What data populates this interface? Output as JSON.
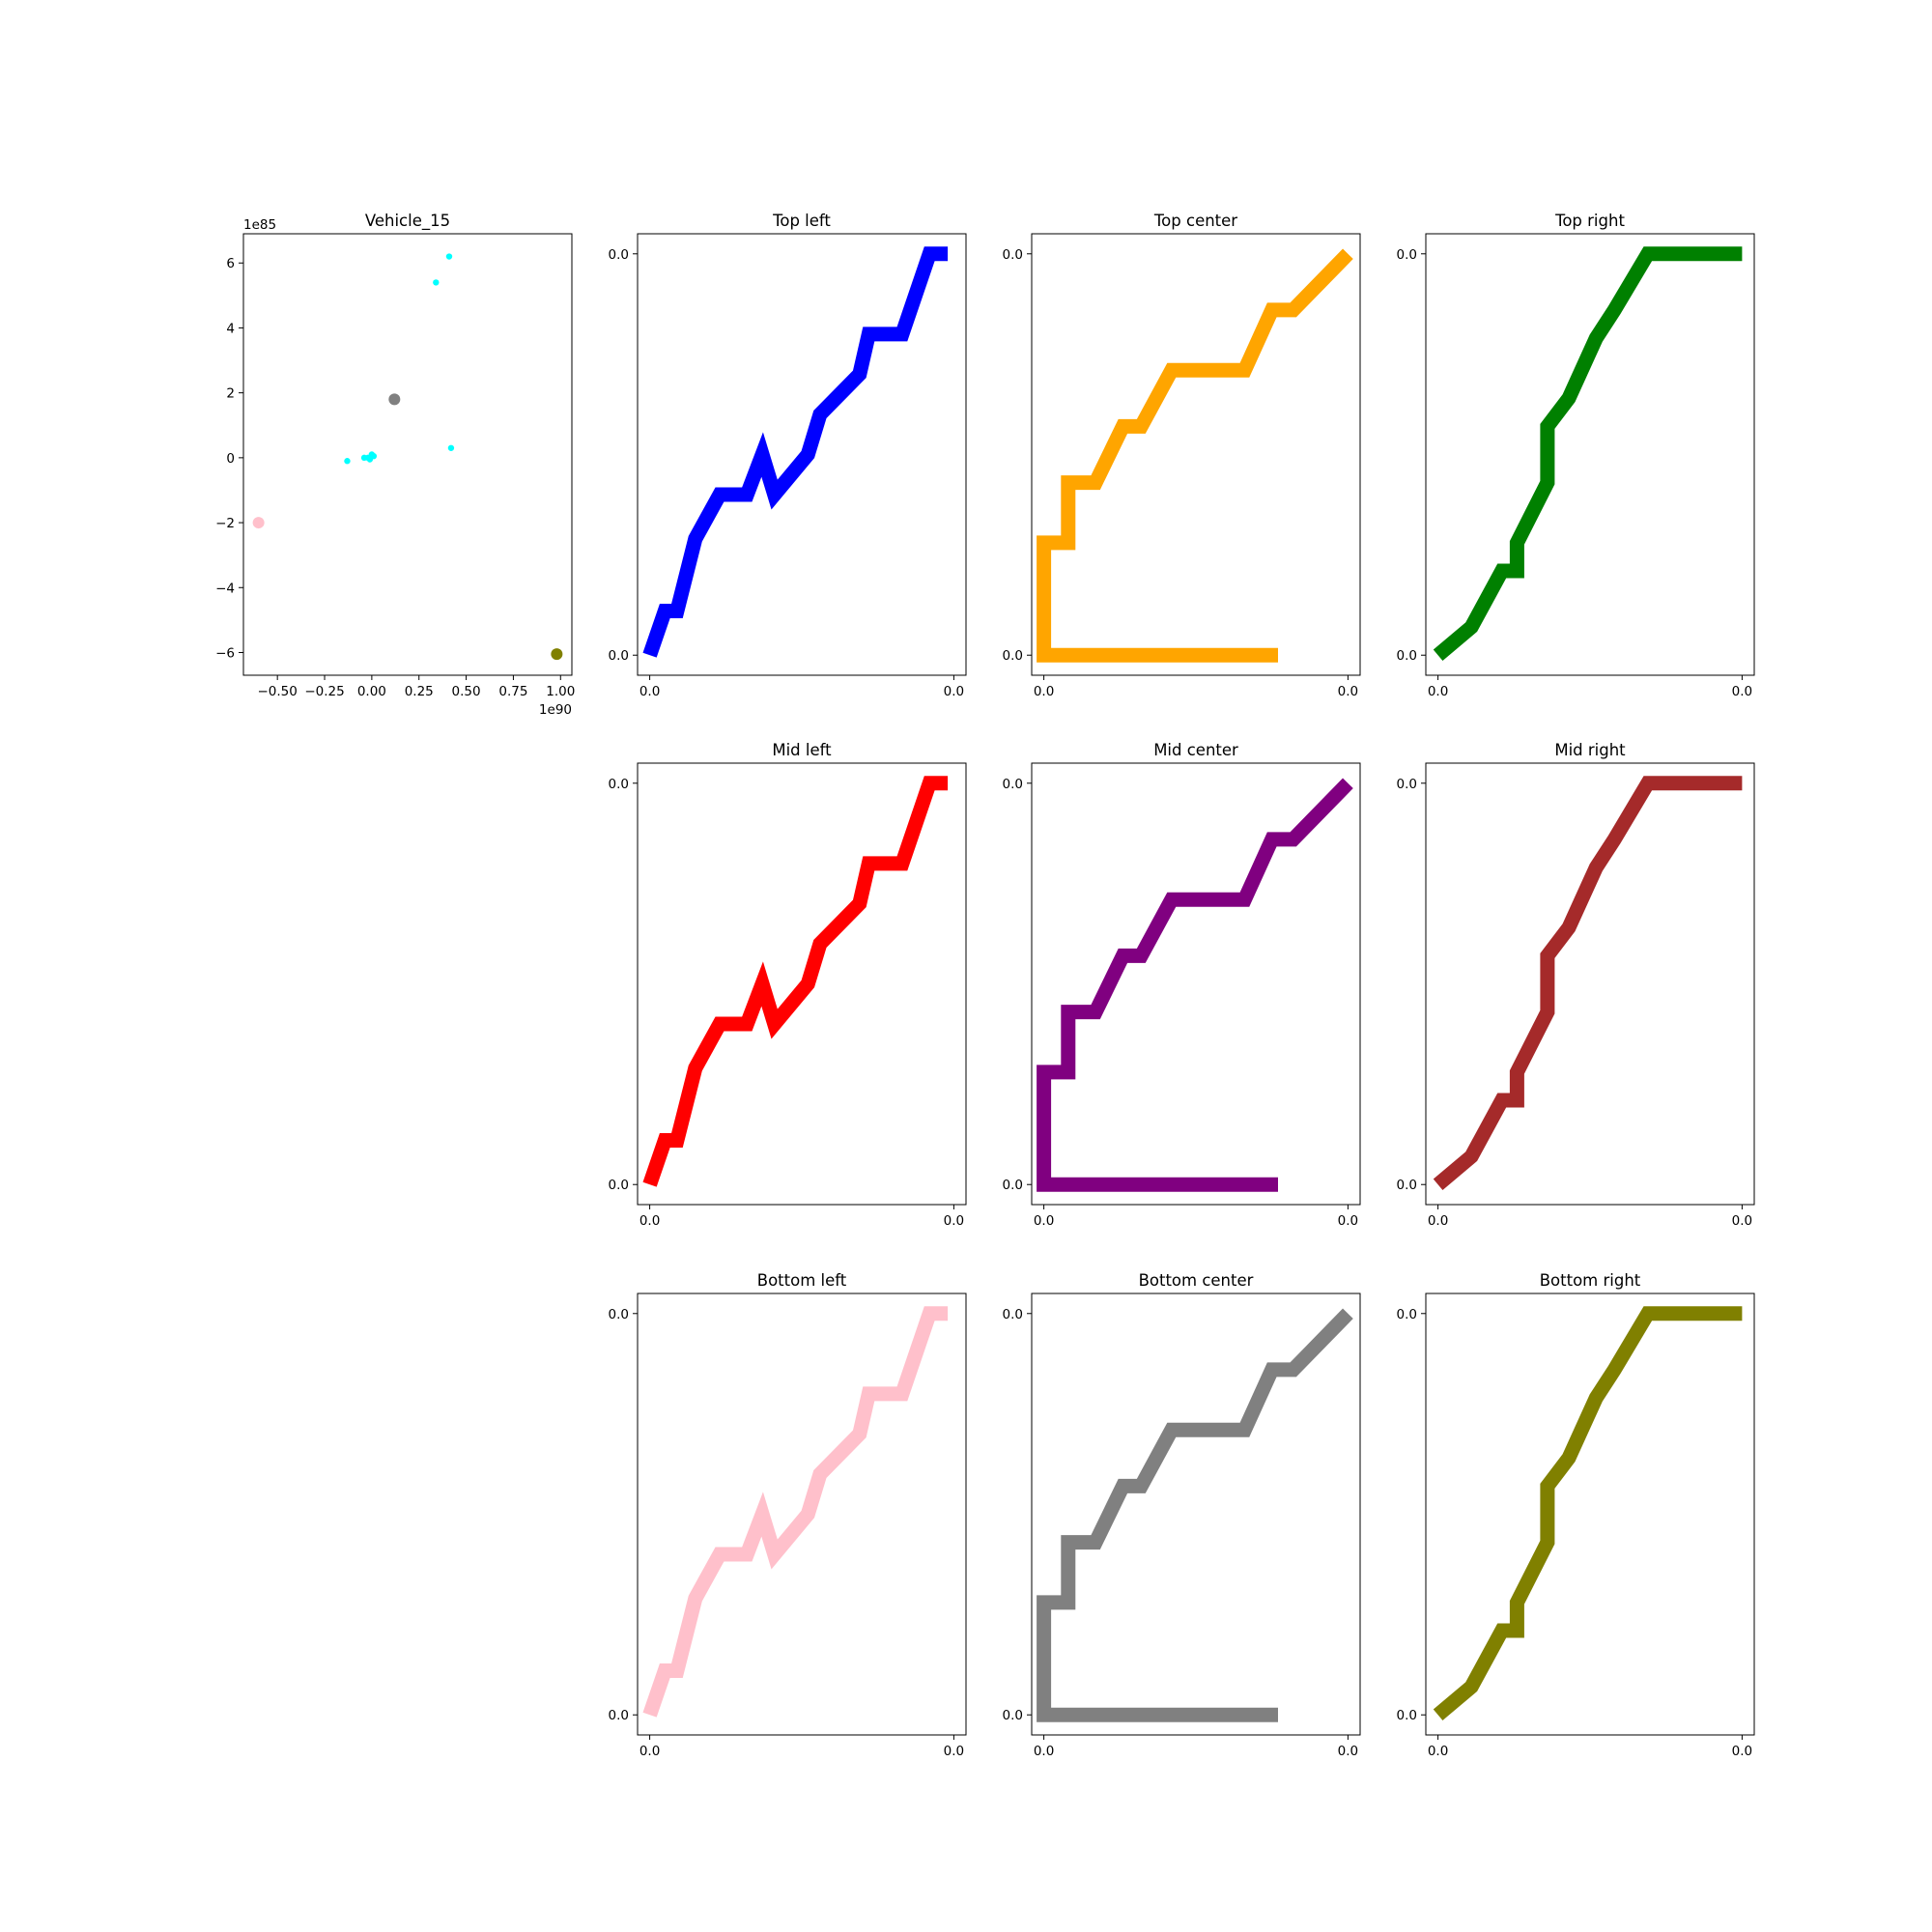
{
  "figure": {
    "background": "#ffffff"
  },
  "chart_data": [
    {
      "type": "scatter",
      "title": "Vehicle_15",
      "x_offset_text": "1e90",
      "y_offset_text": "1e85",
      "xlim": [
        -0.68,
        1.06
      ],
      "ylim": [
        -6.7,
        6.9
      ],
      "x_ticks": [
        -0.5,
        -0.25,
        0.0,
        0.25,
        0.5,
        0.75,
        1.0
      ],
      "x_tick_labels": [
        "−0.50",
        "−0.25",
        "0.00",
        "0.25",
        "0.50",
        "0.75",
        "1.00"
      ],
      "y_ticks": [
        -6,
        -4,
        -2,
        0,
        2,
        4,
        6
      ],
      "y_tick_labels": [
        "−6",
        "−4",
        "−2",
        "0",
        "2",
        "4",
        "6"
      ],
      "series": [
        {
          "color": "#00ffff",
          "marker_size": "small",
          "x": [
            0.41,
            0.34,
            0.42,
            -0.13,
            -0.04,
            -0.01,
            0.0,
            0.01,
            -0.02
          ],
          "y": [
            6.2,
            5.4,
            0.3,
            -0.1,
            0.0,
            -0.05,
            0.1,
            0.05,
            0.0
          ]
        },
        {
          "color": "#808080",
          "marker_size": "large",
          "x": [
            0.12
          ],
          "y": [
            1.8
          ]
        },
        {
          "color": "#ffc0cb",
          "marker_size": "large",
          "x": [
            -0.6
          ],
          "y": [
            -2.0
          ]
        },
        {
          "color": "#808000",
          "marker_size": "large",
          "x": [
            0.98
          ],
          "y": [
            -6.05
          ]
        }
      ]
    },
    {
      "type": "line",
      "title": "Top left",
      "color": "#0000ff",
      "x_tick_labels": [
        "0.0",
        "0.0"
      ],
      "y_tick_labels": [
        "0.0",
        "0.0"
      ],
      "xlim": [
        -0.04,
        1.04
      ],
      "ylim": [
        -0.05,
        1.05
      ],
      "x": [
        0.0,
        0.05,
        0.09,
        0.15,
        0.23,
        0.32,
        0.37,
        0.41,
        0.52,
        0.56,
        0.69,
        0.72,
        0.83,
        0.92,
        0.98
      ],
      "y": [
        0.0,
        0.11,
        0.11,
        0.29,
        0.4,
        0.4,
        0.5,
        0.4,
        0.5,
        0.6,
        0.7,
        0.8,
        0.8,
        1.0,
        1.0
      ]
    },
    {
      "type": "line",
      "title": "Top center",
      "color": "#ffa500",
      "x_tick_labels": [
        "0.0",
        "0.0"
      ],
      "y_tick_labels": [
        "0.0",
        "0.0"
      ],
      "xlim": [
        -0.04,
        1.04
      ],
      "ylim": [
        -0.05,
        1.05
      ],
      "x": [
        0.77,
        0.0,
        0.0,
        0.08,
        0.08,
        0.17,
        0.26,
        0.32,
        0.42,
        0.66,
        0.75,
        0.82,
        1.0
      ],
      "y": [
        0.0,
        0.0,
        0.28,
        0.28,
        0.43,
        0.43,
        0.57,
        0.57,
        0.71,
        0.71,
        0.86,
        0.86,
        1.0
      ]
    },
    {
      "type": "line",
      "title": "Top right",
      "color": "#008000",
      "x_tick_labels": [
        "0.0",
        "0.0"
      ],
      "y_tick_labels": [
        "0.0",
        "0.0"
      ],
      "xlim": [
        -0.04,
        1.04
      ],
      "ylim": [
        -0.05,
        1.05
      ],
      "x": [
        0.0,
        0.11,
        0.21,
        0.26,
        0.26,
        0.36,
        0.36,
        0.43,
        0.52,
        0.58,
        0.69,
        1.0
      ],
      "y": [
        0.0,
        0.07,
        0.21,
        0.21,
        0.28,
        0.43,
        0.57,
        0.64,
        0.79,
        0.86,
        1.0,
        1.0
      ]
    },
    {
      "type": "line",
      "title": "Mid left",
      "color": "#ff0000",
      "x_tick_labels": [
        "0.0",
        "0.0"
      ],
      "y_tick_labels": [
        "0.0",
        "0.0"
      ],
      "xlim": [
        -0.04,
        1.04
      ],
      "ylim": [
        -0.05,
        1.05
      ],
      "x": [
        0.0,
        0.05,
        0.09,
        0.15,
        0.23,
        0.32,
        0.37,
        0.41,
        0.52,
        0.56,
        0.69,
        0.72,
        0.83,
        0.92,
        0.98
      ],
      "y": [
        0.0,
        0.11,
        0.11,
        0.29,
        0.4,
        0.4,
        0.5,
        0.4,
        0.5,
        0.6,
        0.7,
        0.8,
        0.8,
        1.0,
        1.0
      ]
    },
    {
      "type": "line",
      "title": "Mid center",
      "color": "#800080",
      "x_tick_labels": [
        "0.0",
        "0.0"
      ],
      "y_tick_labels": [
        "0.0",
        "0.0"
      ],
      "xlim": [
        -0.04,
        1.04
      ],
      "ylim": [
        -0.05,
        1.05
      ],
      "x": [
        0.77,
        0.0,
        0.0,
        0.08,
        0.08,
        0.17,
        0.26,
        0.32,
        0.42,
        0.66,
        0.75,
        0.82,
        1.0
      ],
      "y": [
        0.0,
        0.0,
        0.28,
        0.28,
        0.43,
        0.43,
        0.57,
        0.57,
        0.71,
        0.71,
        0.86,
        0.86,
        1.0
      ]
    },
    {
      "type": "line",
      "title": "Mid right",
      "color": "#a52a2a",
      "x_tick_labels": [
        "0.0",
        "0.0"
      ],
      "y_tick_labels": [
        "0.0",
        "0.0"
      ],
      "xlim": [
        -0.04,
        1.04
      ],
      "ylim": [
        -0.05,
        1.05
      ],
      "x": [
        0.0,
        0.11,
        0.21,
        0.26,
        0.26,
        0.36,
        0.36,
        0.43,
        0.52,
        0.58,
        0.69,
        1.0
      ],
      "y": [
        0.0,
        0.07,
        0.21,
        0.21,
        0.28,
        0.43,
        0.57,
        0.64,
        0.79,
        0.86,
        1.0,
        1.0
      ]
    },
    {
      "type": "line",
      "title": "Bottom left",
      "color": "#ffc0cb",
      "x_tick_labels": [
        "0.0",
        "0.0"
      ],
      "y_tick_labels": [
        "0.0",
        "0.0"
      ],
      "xlim": [
        -0.04,
        1.04
      ],
      "ylim": [
        -0.05,
        1.05
      ],
      "x": [
        0.0,
        0.05,
        0.09,
        0.15,
        0.23,
        0.32,
        0.37,
        0.41,
        0.52,
        0.56,
        0.69,
        0.72,
        0.83,
        0.92,
        0.98
      ],
      "y": [
        0.0,
        0.11,
        0.11,
        0.29,
        0.4,
        0.4,
        0.5,
        0.4,
        0.5,
        0.6,
        0.7,
        0.8,
        0.8,
        1.0,
        1.0
      ]
    },
    {
      "type": "line",
      "title": "Bottom center",
      "color": "#808080",
      "x_tick_labels": [
        "0.0",
        "0.0"
      ],
      "y_tick_labels": [
        "0.0",
        "0.0"
      ],
      "xlim": [
        -0.04,
        1.04
      ],
      "ylim": [
        -0.05,
        1.05
      ],
      "x": [
        0.77,
        0.0,
        0.0,
        0.08,
        0.08,
        0.17,
        0.26,
        0.32,
        0.42,
        0.66,
        0.75,
        0.82,
        1.0
      ],
      "y": [
        0.0,
        0.0,
        0.28,
        0.28,
        0.43,
        0.43,
        0.57,
        0.57,
        0.71,
        0.71,
        0.86,
        0.86,
        1.0
      ]
    },
    {
      "type": "line",
      "title": "Bottom right",
      "color": "#808000",
      "x_tick_labels": [
        "0.0",
        "0.0"
      ],
      "y_tick_labels": [
        "0.0",
        "0.0"
      ],
      "xlim": [
        -0.04,
        1.04
      ],
      "ylim": [
        -0.05,
        1.05
      ],
      "x": [
        0.0,
        0.11,
        0.21,
        0.26,
        0.26,
        0.36,
        0.36,
        0.43,
        0.52,
        0.58,
        0.69,
        1.0
      ],
      "y": [
        0.0,
        0.07,
        0.21,
        0.21,
        0.28,
        0.43,
        0.57,
        0.64,
        0.79,
        0.86,
        1.0,
        1.0
      ]
    }
  ]
}
